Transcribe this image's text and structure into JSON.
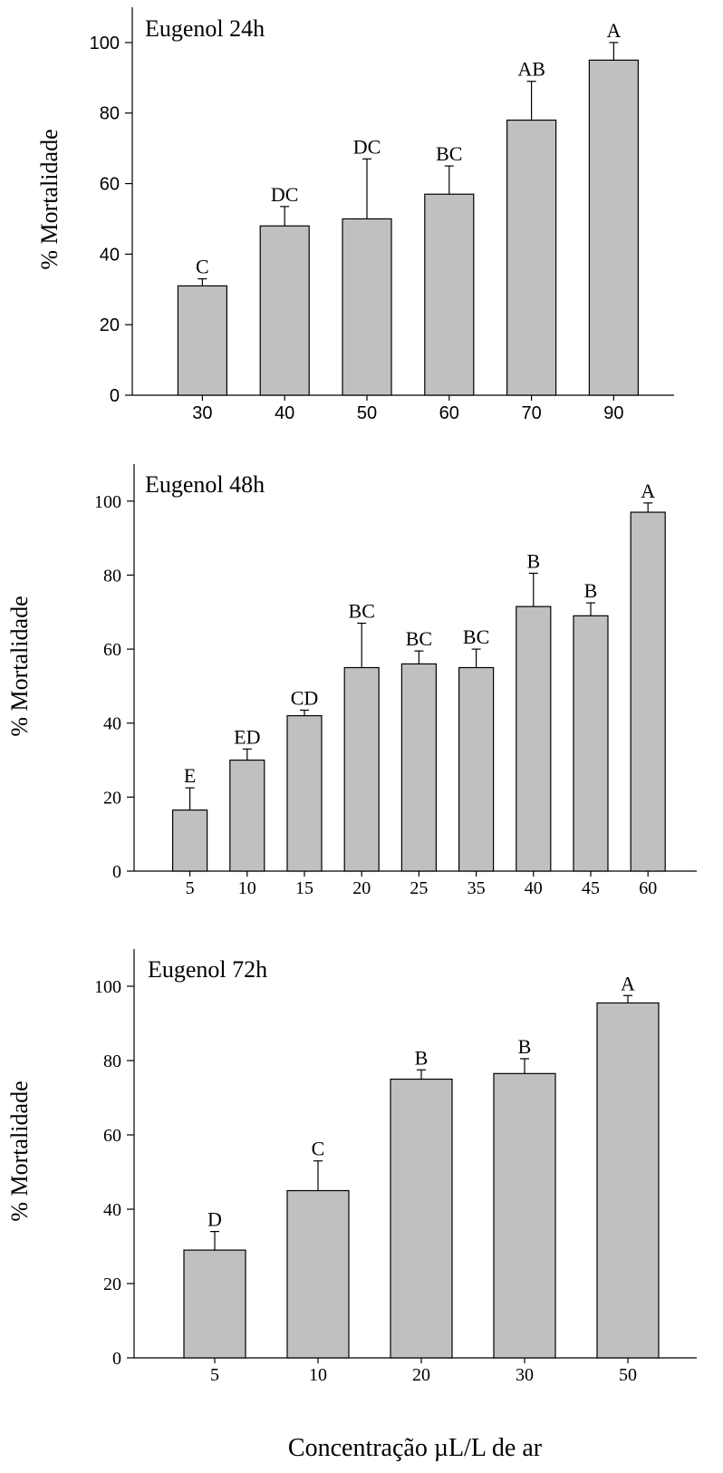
{
  "chart_data": [
    {
      "type": "bar",
      "title": "Eugenol 24h",
      "ylabel": "% Mortalidade",
      "xlabel": "",
      "ylim": [
        0,
        110
      ],
      "yticks": [
        0,
        20,
        40,
        60,
        80,
        100
      ],
      "categories": [
        "30",
        "40",
        "50",
        "60",
        "70",
        "90"
      ],
      "values": [
        31,
        48,
        50,
        57,
        78,
        95
      ],
      "errors": [
        2,
        5.5,
        17,
        8,
        11,
        5
      ],
      "letters": [
        "C",
        "DC",
        "DC",
        "BC",
        "AB",
        "A"
      ],
      "bar_color": "#c0c0c0",
      "grid": false
    },
    {
      "type": "bar",
      "title": "Eugenol 48h",
      "ylabel": "% Mortalidade",
      "xlabel": "",
      "ylim": [
        0,
        110
      ],
      "yticks": [
        0,
        20,
        40,
        60,
        80,
        100
      ],
      "categories": [
        "5",
        "10",
        "15",
        "20",
        "25",
        "35",
        "40",
        "45",
        "60"
      ],
      "values": [
        16.5,
        30,
        42,
        55,
        56,
        55,
        71.5,
        69,
        97
      ],
      "errors": [
        6,
        3,
        1.5,
        12,
        3.5,
        5,
        9,
        3.5,
        2.5
      ],
      "letters": [
        "E",
        "ED",
        "CD",
        "BC",
        "BC",
        "BC",
        "B",
        "B",
        "A"
      ],
      "bar_color": "#c0c0c0",
      "grid": false
    },
    {
      "type": "bar",
      "title": "Eugenol 72h",
      "ylabel": "% Mortalidade",
      "xlabel": "Concentração µL/L de ar",
      "ylim": [
        0,
        110
      ],
      "yticks": [
        0,
        20,
        40,
        60,
        80,
        100
      ],
      "categories": [
        "5",
        "10",
        "20",
        "30",
        "50"
      ],
      "values": [
        29,
        45,
        75,
        76.5,
        95.5
      ],
      "errors": [
        5,
        8,
        2.5,
        4,
        2
      ],
      "letters": [
        "D",
        "C",
        "B",
        "B",
        "A"
      ],
      "bar_color": "#c0c0c0",
      "grid": false
    }
  ]
}
